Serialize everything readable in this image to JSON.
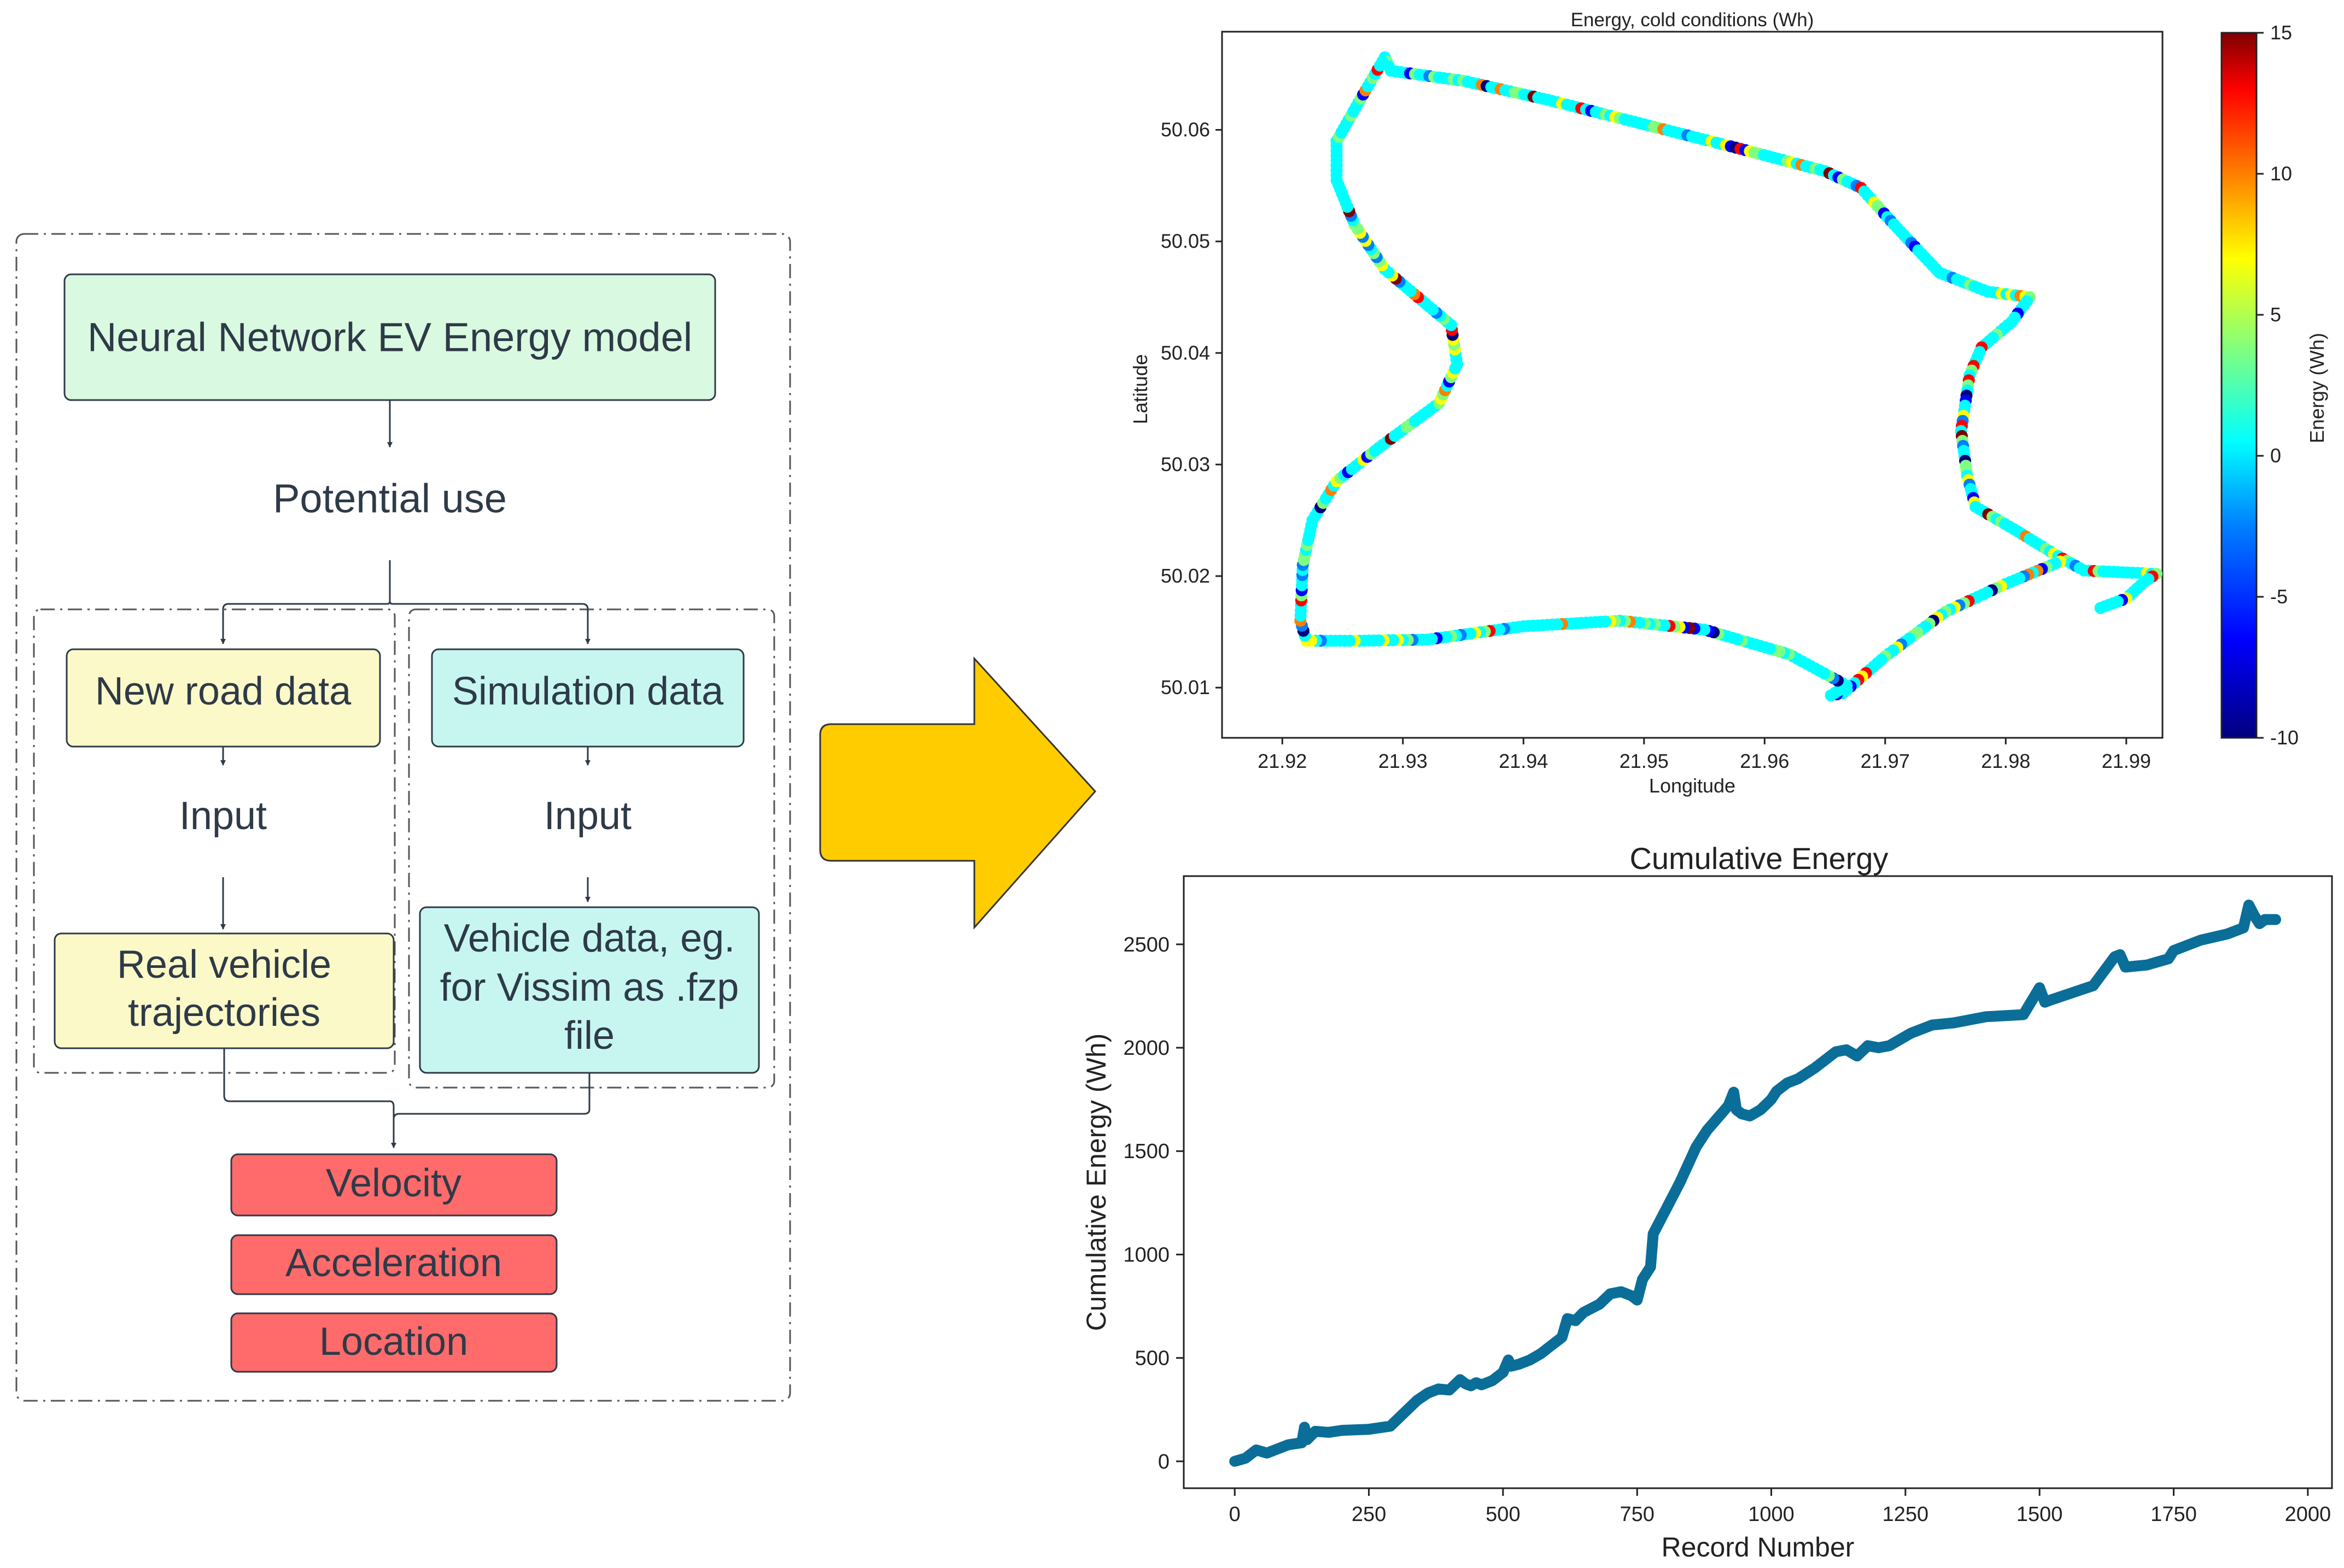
{
  "flowchart": {
    "top_box": "Neural Network EV Energy model",
    "potential_use": "Potential use",
    "left_branch": {
      "source": "New road data",
      "input": "Input",
      "result_line1": "Real vehicle",
      "result_line2": "trajectories"
    },
    "right_branch": {
      "source": "Simulation data",
      "input": "Input",
      "result_line1": "Vehicle data, eg.",
      "result_line2": "for Vissim as .fzp",
      "result_line3": "file"
    },
    "outputs": [
      "Velocity",
      "Acceleration",
      "Location"
    ],
    "colors": {
      "top_box": "#d9f9e0",
      "left_boxes": "#fbf9c8",
      "right_boxes": "#c7f6f1",
      "outputs": "#ff6b6b",
      "arrow": "#ffcc00",
      "text": "#2e3a48"
    }
  },
  "chart_data": [
    {
      "type": "scatter",
      "title": "Energy, cold conditions (Wh)",
      "xlabel": "Longitude",
      "ylabel": "Latitude",
      "xlim": [
        21.915,
        21.993
      ],
      "ylim": [
        50.0055,
        50.0688
      ],
      "xticks": [
        "21.92",
        "21.93",
        "21.94",
        "21.95",
        "21.96",
        "21.97",
        "21.98",
        "21.99"
      ],
      "yticks": [
        "50.01",
        "50.02",
        "50.03",
        "50.04",
        "50.05",
        "50.06"
      ],
      "route_path": [
        [
          21.9285,
          50.0665
        ],
        [
          21.929,
          50.0653
        ],
        [
          21.935,
          50.0644
        ],
        [
          21.942,
          50.0627
        ],
        [
          21.95,
          50.0605
        ],
        [
          21.958,
          50.0583
        ],
        [
          21.965,
          50.0563
        ],
        [
          21.968,
          50.0548
        ],
        [
          21.971,
          50.0512
        ],
        [
          21.9745,
          50.0472
        ],
        [
          21.9785,
          50.0455
        ],
        [
          21.982,
          50.045
        ],
        [
          21.9805,
          50.0428
        ],
        [
          21.978,
          50.0405
        ],
        [
          21.977,
          50.038
        ],
        [
          21.9763,
          50.033
        ],
        [
          21.9768,
          50.029
        ],
        [
          21.9775,
          50.0262
        ],
        [
          21.981,
          50.024
        ],
        [
          21.984,
          50.022
        ],
        [
          21.9865,
          50.0205
        ],
        [
          21.9905,
          50.0203
        ],
        [
          21.9925,
          50.0202
        ],
        [
          21.9915,
          50.0195
        ],
        [
          21.99,
          50.018
        ],
        [
          21.9875,
          50.017
        ]
      ],
      "route_path_b": [
        [
          21.9845,
          50.0213
        ],
        [
          21.98,
          50.0193
        ],
        [
          21.975,
          50.0168
        ],
        [
          21.97,
          50.0128
        ],
        [
          21.9665,
          50.0095
        ],
        [
          21.9655,
          50.0093
        ],
        [
          21.9668,
          50.0102
        ],
        [
          21.962,
          50.013
        ],
        [
          21.955,
          50.0152
        ],
        [
          21.948,
          50.016
        ],
        [
          21.94,
          50.0155
        ],
        [
          21.932,
          50.0143
        ],
        [
          21.926,
          50.0142
        ],
        [
          21.922,
          50.0142
        ],
        [
          21.9215,
          50.016
        ],
        [
          21.9217,
          50.021
        ],
        [
          21.9225,
          50.025
        ],
        [
          21.9245,
          50.0285
        ],
        [
          21.928,
          50.0315
        ],
        [
          21.933,
          50.0355
        ],
        [
          21.9345,
          50.039
        ],
        [
          21.934,
          50.0425
        ],
        [
          21.9285,
          50.0475
        ],
        [
          21.926,
          50.0515
        ],
        [
          21.9245,
          50.0555
        ],
        [
          21.9245,
          50.059
        ],
        [
          21.9265,
          50.0628
        ],
        [
          21.9285,
          50.0665
        ]
      ],
      "colorbar": {
        "label": "Energy (Wh)",
        "range": [
          -10,
          15
        ],
        "ticks": [
          "15",
          "10",
          "5",
          "0",
          "-5",
          "-10"
        ],
        "colormap": [
          "#00007f",
          "#0000ff",
          "#007fff",
          "#00ffff",
          "#7fff7f",
          "#ffff00",
          "#ff7f00",
          "#ff0000",
          "#7f0000"
        ]
      }
    },
    {
      "type": "line",
      "title": "Cumulative Energy",
      "xlabel": "Record Number",
      "ylabel": "Cumulative Energy (Wh)",
      "xlim": [
        -95,
        2045
      ],
      "ylim": [
        -130,
        2830
      ],
      "xticks": [
        "0",
        "250",
        "500",
        "750",
        "1000",
        "1250",
        "1500",
        "1750",
        "2000"
      ],
      "yticks": [
        "0",
        "500",
        "1000",
        "1500",
        "2000",
        "2500"
      ],
      "line_color": "#0a6e99",
      "x": [
        0,
        20,
        40,
        60,
        80,
        100,
        125,
        130,
        135,
        150,
        175,
        200,
        250,
        290,
        310,
        340,
        360,
        380,
        400,
        420,
        430,
        440,
        450,
        460,
        480,
        500,
        510,
        515,
        530,
        550,
        570,
        590,
        610,
        620,
        635,
        650,
        680,
        700,
        720,
        740,
        750,
        760,
        775,
        780,
        800,
        830,
        860,
        880,
        900,
        920,
        930,
        935,
        945,
        960,
        980,
        1000,
        1010,
        1030,
        1050,
        1080,
        1100,
        1120,
        1140,
        1160,
        1180,
        1200,
        1220,
        1260,
        1300,
        1340,
        1400,
        1470,
        1500,
        1510,
        1520,
        1600,
        1640,
        1650,
        1660,
        1700,
        1740,
        1750,
        1800,
        1850,
        1880,
        1890,
        1900,
        1910,
        1920,
        1940
      ],
      "values": [
        0,
        15,
        55,
        40,
        60,
        80,
        90,
        165,
        105,
        145,
        140,
        150,
        155,
        170,
        220,
        295,
        330,
        350,
        345,
        395,
        375,
        365,
        380,
        370,
        390,
        430,
        490,
        460,
        470,
        490,
        520,
        560,
        600,
        690,
        680,
        720,
        760,
        810,
        820,
        800,
        780,
        880,
        940,
        1100,
        1200,
        1350,
        1520,
        1600,
        1660,
        1720,
        1785,
        1700,
        1680,
        1670,
        1700,
        1750,
        1790,
        1830,
        1850,
        1900,
        1940,
        1980,
        1990,
        1960,
        2010,
        2000,
        2010,
        2070,
        2110,
        2120,
        2150,
        2160,
        2290,
        2220,
        2230,
        2300,
        2440,
        2450,
        2390,
        2400,
        2430,
        2470,
        2520,
        2550,
        2580,
        2690,
        2640,
        2600,
        2620,
        2620
      ]
    }
  ]
}
